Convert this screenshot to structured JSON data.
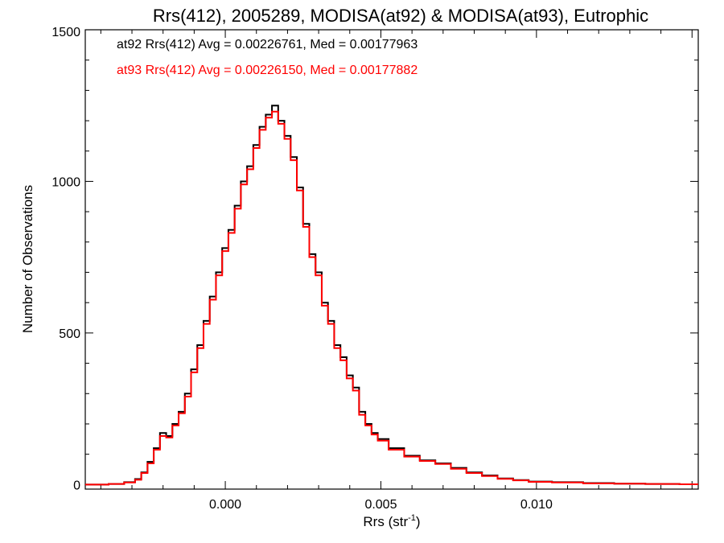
{
  "chart_data": {
    "type": "line",
    "step": true,
    "title": "Rrs(412), 2005289, MODISA(at92) & MODISA(at93), Eutrophic",
    "xlabel": "Rrs (str",
    "xlabel_sup": "-1",
    "xlabel_end": ")",
    "ylabel": "Number of Observations",
    "xlim": [
      -0.0045,
      0.0152
    ],
    "ylim": [
      -15,
      1500
    ],
    "xticks": [
      0.0,
      0.005,
      0.01
    ],
    "xtick_labels": [
      "0.000",
      "0.005",
      "0.010"
    ],
    "yticks": [
      0,
      500,
      1000,
      1500
    ],
    "ytick_labels": [
      "0",
      "500",
      "1000",
      "1500"
    ],
    "grid": false,
    "legend_position": "top-left",
    "series": [
      {
        "name": "at92 Rrs(412) Avg = 0.00226761, Med = 0.00177963",
        "color": "#000000",
        "x": [
          -0.0045,
          -0.004,
          -0.0035,
          -0.003,
          -0.0028,
          -0.0026,
          -0.0024,
          -0.0022,
          -0.002,
          -0.0018,
          -0.0016,
          -0.0014,
          -0.0012,
          -0.001,
          -0.0008,
          -0.0006,
          -0.0004,
          -0.0002,
          0.0,
          0.0002,
          0.0004,
          0.0006,
          0.0008,
          0.001,
          0.0012,
          0.0014,
          0.0016,
          0.0018,
          0.002,
          0.0022,
          0.0024,
          0.0026,
          0.0028,
          0.003,
          0.0032,
          0.0034,
          0.0036,
          0.0038,
          0.004,
          0.0042,
          0.0044,
          0.0046,
          0.0048,
          0.005,
          0.0055,
          0.006,
          0.0065,
          0.007,
          0.0075,
          0.008,
          0.0085,
          0.009,
          0.0095,
          0.01,
          0.011,
          0.012,
          0.013,
          0.014,
          0.0152
        ],
        "y": [
          0,
          0,
          2,
          8,
          18,
          40,
          75,
          120,
          170,
          160,
          200,
          240,
          300,
          380,
          460,
          540,
          620,
          700,
          780,
          840,
          920,
          1000,
          1050,
          1120,
          1180,
          1220,
          1250,
          1200,
          1150,
          1080,
          980,
          860,
          760,
          700,
          600,
          540,
          460,
          420,
          360,
          320,
          240,
          200,
          170,
          150,
          120,
          95,
          80,
          70,
          55,
          40,
          30,
          20,
          15,
          10,
          8,
          5,
          3,
          2,
          1
        ]
      },
      {
        "name": "at93 Rrs(412) Avg = 0.00226150, Med = 0.00177882",
        "color": "#ff0000",
        "x": [
          -0.0045,
          -0.004,
          -0.0035,
          -0.003,
          -0.0028,
          -0.0026,
          -0.0024,
          -0.0022,
          -0.002,
          -0.0018,
          -0.0016,
          -0.0014,
          -0.0012,
          -0.001,
          -0.0008,
          -0.0006,
          -0.0004,
          -0.0002,
          0.0,
          0.0002,
          0.0004,
          0.0006,
          0.0008,
          0.001,
          0.0012,
          0.0014,
          0.0016,
          0.0018,
          0.002,
          0.0022,
          0.0024,
          0.0026,
          0.0028,
          0.003,
          0.0032,
          0.0034,
          0.0036,
          0.0038,
          0.004,
          0.0042,
          0.0044,
          0.0046,
          0.0048,
          0.005,
          0.0055,
          0.006,
          0.0065,
          0.007,
          0.0075,
          0.008,
          0.0085,
          0.009,
          0.0095,
          0.01,
          0.011,
          0.012,
          0.013,
          0.014,
          0.0152
        ],
        "y": [
          0,
          0,
          2,
          7,
          16,
          38,
          70,
          115,
          160,
          155,
          195,
          235,
          290,
          370,
          450,
          530,
          610,
          690,
          770,
          830,
          910,
          990,
          1040,
          1110,
          1170,
          1210,
          1230,
          1190,
          1140,
          1070,
          970,
          850,
          750,
          690,
          590,
          530,
          450,
          410,
          350,
          310,
          230,
          195,
          165,
          145,
          115,
          92,
          78,
          68,
          52,
          38,
          28,
          19,
          14,
          9,
          7,
          4,
          3,
          2,
          1
        ]
      }
    ]
  }
}
